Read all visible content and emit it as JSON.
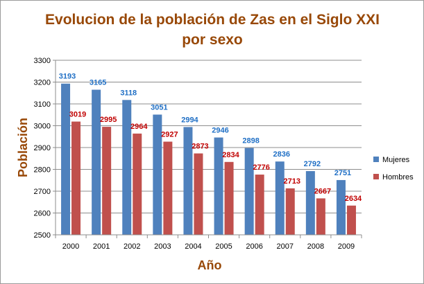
{
  "chart_data": {
    "type": "bar",
    "title_line1": "Evolucion de la población de Zas en el Siglo XXI",
    "title_line2": "por sexo",
    "xlabel": "Año",
    "ylabel": "Población",
    "categories": [
      "2000",
      "2001",
      "2002",
      "2003",
      "2004",
      "2005",
      "2006",
      "2007",
      "2008",
      "2009"
    ],
    "series": [
      {
        "name": "Mujeres",
        "color": "#4F81BD",
        "label_color": "#1F6FC5",
        "values": [
          3193,
          3165,
          3118,
          3051,
          2994,
          2946,
          2898,
          2836,
          2792,
          2751
        ]
      },
      {
        "name": "Hombres",
        "color": "#C0504D",
        "label_color": "#C00000",
        "values": [
          3019,
          2995,
          2964,
          2927,
          2873,
          2834,
          2776,
          2713,
          2667,
          2634
        ]
      }
    ],
    "ylim": [
      2500,
      3300
    ],
    "yticks": [
      "2500",
      "2600",
      "2700",
      "2800",
      "2900",
      "3000",
      "3100",
      "3200",
      "3300"
    ],
    "grid": true,
    "legend_position": "right",
    "title_color": "#984807",
    "axis_title_color": "#984807"
  }
}
